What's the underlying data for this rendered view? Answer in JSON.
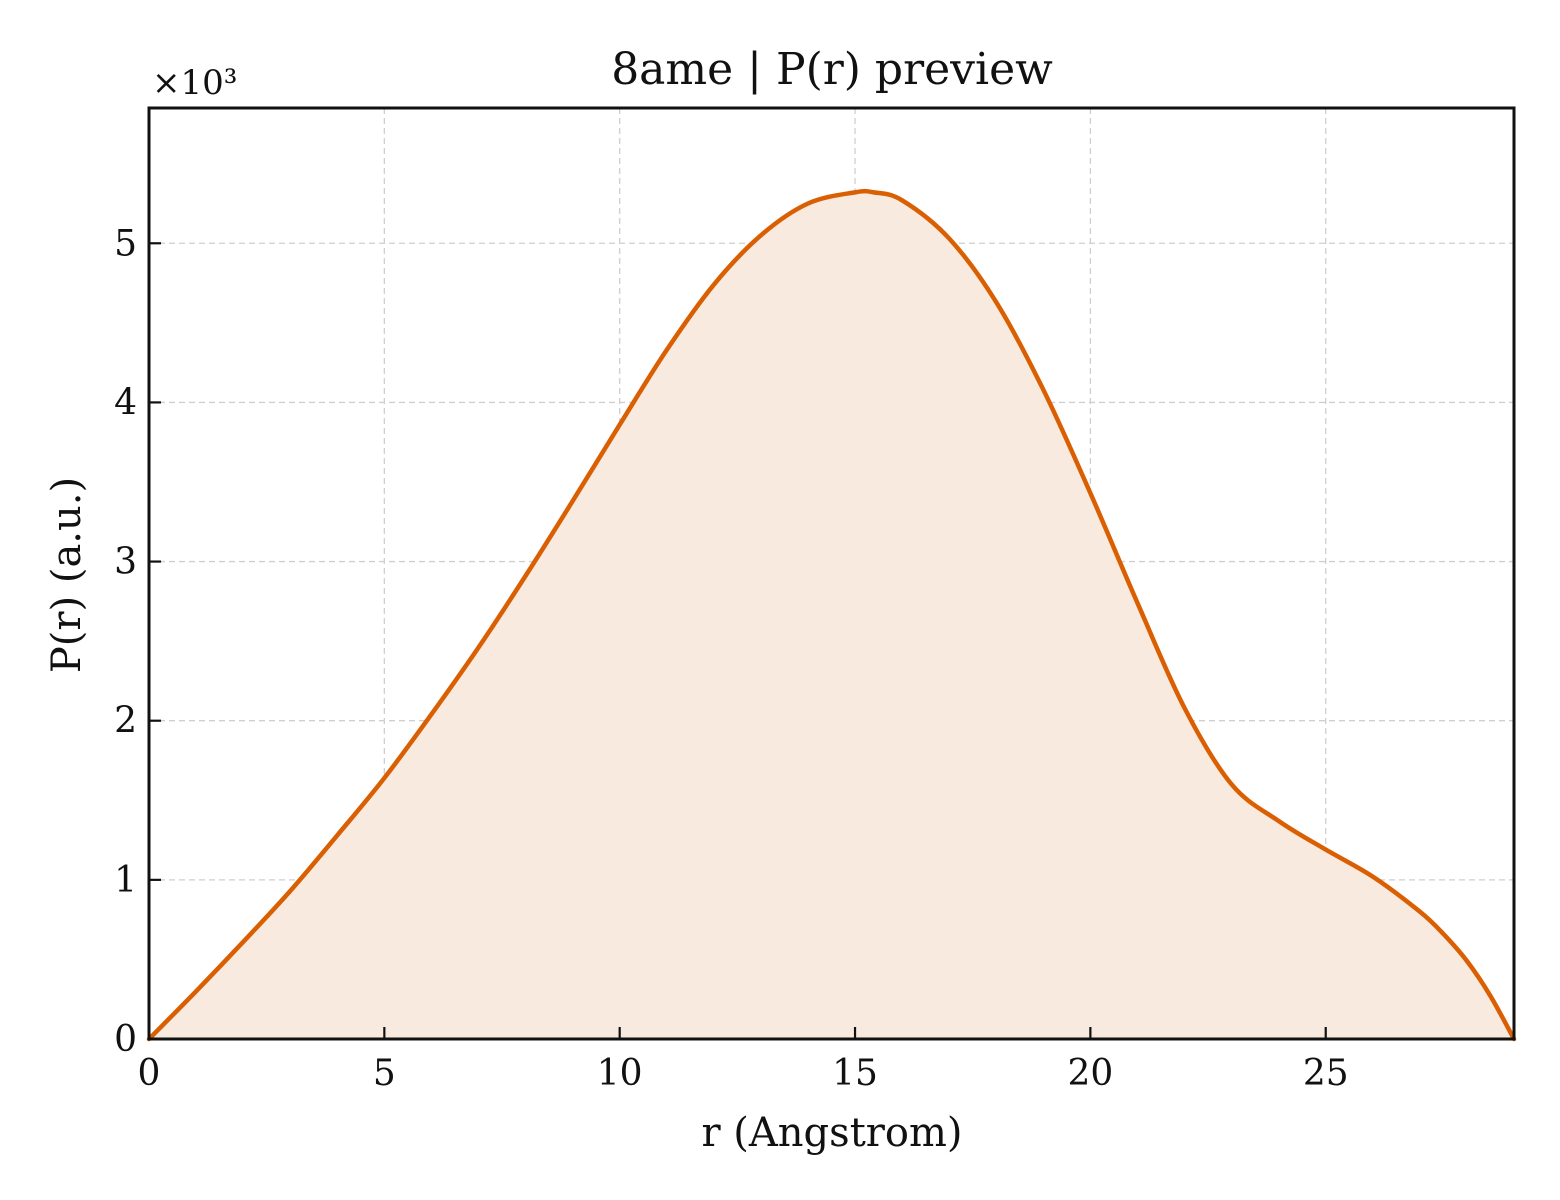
{
  "chart_data": {
    "type": "area",
    "title": "8ame | P(r) preview",
    "xlabel": "r (Angstrom)",
    "ylabel": "P(r) (a.u.)",
    "y_offset_label": "×10³",
    "xlim": [
      0,
      29
    ],
    "ylim": [
      0,
      5.85
    ],
    "x_ticks": [
      0,
      5,
      10,
      15,
      20,
      25
    ],
    "y_ticks": [
      0,
      1,
      2,
      3,
      4,
      5
    ],
    "grid": true,
    "line_color": "#d95f02",
    "fill_color": "#f8eadf",
    "series": [
      {
        "x": [
          0,
          1,
          2,
          3,
          4,
          5,
          6,
          7,
          8,
          9,
          10,
          11,
          12,
          13,
          14,
          15,
          15.4,
          16,
          17,
          18,
          19,
          20,
          21,
          22,
          23,
          24,
          25,
          26,
          27,
          27.5,
          28,
          28.5,
          29
        ],
        "y": [
          0,
          0.3,
          0.61,
          0.93,
          1.28,
          1.64,
          2.04,
          2.46,
          2.91,
          3.38,
          3.86,
          4.33,
          4.74,
          5.05,
          5.25,
          5.32,
          5.32,
          5.27,
          5.03,
          4.63,
          4.08,
          3.43,
          2.74,
          2.08,
          1.6,
          1.37,
          1.19,
          1.02,
          0.8,
          0.66,
          0.49,
          0.27,
          0
        ]
      }
    ]
  }
}
